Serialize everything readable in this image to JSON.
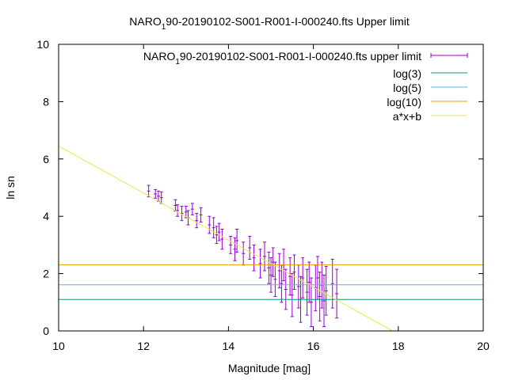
{
  "chart_data": {
    "type": "scatter",
    "title_parts": [
      "NARO",
      "1",
      "90-20190102-S001-R001-I-000240.fts Upper limit"
    ],
    "xlabel": "Magnitude [mag]",
    "ylabel": "ln sn",
    "xlim": [
      10,
      20
    ],
    "ylim": [
      0,
      10
    ],
    "xticks": [
      "10",
      "12",
      "14",
      "16",
      "18",
      "20"
    ],
    "yticks": [
      "0",
      "2",
      "4",
      "6",
      "8",
      "10"
    ],
    "legend_position": "top-right",
    "series": [
      {
        "name_parts": [
          "NARO",
          "1",
          "90-20190102-S001-R001-I-000240.fts upper limit"
        ],
        "kind": "errorbar",
        "color": "#9400d3",
        "points": [
          [
            12.12,
            4.88,
            0.2
          ],
          [
            12.28,
            4.78,
            0.15
          ],
          [
            12.35,
            4.7,
            0.18
          ],
          [
            12.42,
            4.65,
            0.2
          ],
          [
            12.75,
            4.38,
            0.2
          ],
          [
            12.8,
            4.2,
            0.2
          ],
          [
            12.9,
            4.1,
            0.25
          ],
          [
            13.0,
            4.15,
            0.2
          ],
          [
            13.05,
            3.95,
            0.25
          ],
          [
            13.15,
            4.25,
            0.2
          ],
          [
            13.25,
            3.85,
            0.25
          ],
          [
            13.35,
            4.05,
            0.25
          ],
          [
            13.55,
            3.7,
            0.3
          ],
          [
            13.65,
            3.6,
            0.35
          ],
          [
            13.72,
            3.35,
            0.3
          ],
          [
            13.78,
            3.45,
            0.3
          ],
          [
            13.85,
            3.2,
            0.35
          ],
          [
            14.05,
            3.0,
            0.3
          ],
          [
            14.15,
            2.85,
            0.4
          ],
          [
            14.2,
            3.15,
            0.4
          ],
          [
            14.35,
            2.7,
            0.4
          ],
          [
            14.5,
            2.9,
            0.4
          ],
          [
            14.6,
            2.55,
            0.45
          ],
          [
            14.75,
            2.35,
            0.5
          ],
          [
            14.85,
            2.6,
            0.5
          ],
          [
            14.95,
            2.2,
            0.55
          ],
          [
            15.0,
            1.95,
            0.6
          ],
          [
            15.05,
            2.4,
            0.5
          ],
          [
            15.1,
            1.8,
            0.6
          ],
          [
            15.2,
            2.1,
            0.6
          ],
          [
            15.25,
            1.65,
            0.65
          ],
          [
            15.3,
            2.3,
            0.55
          ],
          [
            15.35,
            1.45,
            0.7
          ],
          [
            15.45,
            1.9,
            0.65
          ],
          [
            15.5,
            1.25,
            0.75
          ],
          [
            15.55,
            2.05,
            0.6
          ],
          [
            15.65,
            1.55,
            0.75
          ],
          [
            15.7,
            1.1,
            0.8
          ],
          [
            15.75,
            1.85,
            0.7
          ],
          [
            15.85,
            1.35,
            0.8
          ],
          [
            15.9,
            1.7,
            0.7
          ],
          [
            15.95,
            1.0,
            0.85
          ],
          [
            16.05,
            1.5,
            0.8
          ],
          [
            16.1,
            1.85,
            0.75
          ],
          [
            16.15,
            1.2,
            0.85
          ],
          [
            16.2,
            1.6,
            0.8
          ],
          [
            16.25,
            1.05,
            0.9
          ],
          [
            16.3,
            1.4,
            0.85
          ],
          [
            16.45,
            1.65,
            0.85
          ],
          [
            16.55,
            1.3,
            0.85
          ]
        ]
      },
      {
        "name": "log(3)",
        "kind": "hline",
        "y": 1.0986,
        "color": "#009e73"
      },
      {
        "name": "log(5)",
        "kind": "hline",
        "y": 1.6094,
        "color": "#56b4e9"
      },
      {
        "name": "log(10)",
        "kind": "hline",
        "y": 2.3026,
        "color": "#e69f00"
      },
      {
        "name": "a*x+b",
        "kind": "fit",
        "slope": -0.82,
        "intercept": 14.65,
        "color": "#f0e442"
      }
    ]
  }
}
